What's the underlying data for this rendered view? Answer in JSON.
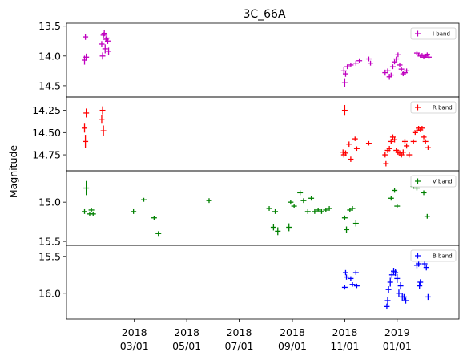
{
  "chart_data": {
    "type": "scatter",
    "title": "3C_66A",
    "ylabel": "Magnitude",
    "xlim": [
      "2017-12-12",
      "2019-03-14"
    ],
    "x_ticks": [
      {
        "date": "2018-03-01",
        "line1": "2018",
        "line2": "03/01"
      },
      {
        "date": "2018-05-01",
        "line1": "2018",
        "line2": "05/01"
      },
      {
        "date": "2018-07-01",
        "line1": "2018",
        "line2": "07/01"
      },
      {
        "date": "2018-09-01",
        "line1": "2018",
        "line2": "09/01"
      },
      {
        "date": "2018-11-01",
        "line1": "2018",
        "line2": "11/01"
      },
      {
        "date": "2019-01-01",
        "line1": "2019",
        "line2": "01/01"
      }
    ],
    "series": [
      {
        "name": "I band",
        "color": "#bf00bf",
        "y_inverted": true,
        "ylim": [
          14.69,
          13.45
        ],
        "yticks": [
          {
            "v": 13.5,
            "label": "13.5"
          },
          {
            "v": 14.0,
            "label": "14.0"
          },
          {
            "v": 14.5,
            "label": "14.5"
          }
        ],
        "points": [
          [
            "2018-01-02",
            14.07,
            0.15
          ],
          [
            "2018-01-03",
            13.68,
            0.1
          ],
          [
            "2018-01-04",
            14.02,
            0.12
          ],
          [
            "2018-01-22",
            13.8,
            0.1
          ],
          [
            "2018-01-23",
            14.0,
            0.12
          ],
          [
            "2018-01-24",
            13.65,
            0.09
          ],
          [
            "2018-01-25",
            13.62,
            0.1
          ],
          [
            "2018-01-26",
            13.88,
            0.15
          ],
          [
            "2018-01-27",
            13.72,
            0.1
          ],
          [
            "2018-01-28",
            13.7,
            0.12
          ],
          [
            "2018-01-29",
            13.75,
            0.1
          ],
          [
            "2018-01-30",
            13.92,
            0.12
          ],
          [
            "2018-10-31",
            14.25,
            0.12
          ],
          [
            "2018-11-01",
            14.45,
            0.15
          ],
          [
            "2018-11-02",
            14.3,
            0.1
          ],
          [
            "2018-11-04",
            14.18,
            0.08
          ],
          [
            "2018-11-08",
            14.15,
            0.08
          ],
          [
            "2018-11-14",
            14.12,
            0.08
          ],
          [
            "2018-11-18",
            14.08,
            0.08
          ],
          [
            "2018-11-29",
            14.05,
            0.08
          ],
          [
            "2018-12-01",
            14.12,
            0.08
          ],
          [
            "2018-12-18",
            14.28,
            0.1
          ],
          [
            "2018-12-21",
            14.25,
            0.08
          ],
          [
            "2018-12-23",
            14.35,
            0.1
          ],
          [
            "2018-12-25",
            14.32,
            0.08
          ],
          [
            "2018-12-27",
            14.18,
            0.08
          ],
          [
            "2018-12-29",
            14.1,
            0.08
          ],
          [
            "2018-12-31",
            14.05,
            0.08
          ],
          [
            "2019-01-02",
            13.98,
            0.08
          ],
          [
            "2019-01-04",
            14.15,
            0.08
          ],
          [
            "2019-01-06",
            14.22,
            0.08
          ],
          [
            "2019-01-08",
            14.3,
            0.08
          ],
          [
            "2019-01-10",
            14.28,
            0.08
          ],
          [
            "2019-01-12",
            14.25,
            0.08
          ],
          [
            "2019-01-24",
            13.95,
            0.06
          ],
          [
            "2019-01-26",
            13.98,
            0.06
          ],
          [
            "2019-01-28",
            14.0,
            0.06
          ],
          [
            "2019-01-30",
            13.98,
            0.06
          ],
          [
            "2019-02-01",
            14.02,
            0.06
          ],
          [
            "2019-02-03",
            14.0,
            0.06
          ],
          [
            "2019-02-05",
            13.97,
            0.06
          ],
          [
            "2019-02-07",
            14.02,
            0.06
          ]
        ]
      },
      {
        "name": "R band",
        "color": "#ff0000",
        "y_inverted": true,
        "ylim": [
          14.93,
          14.1
        ],
        "yticks": [
          {
            "v": 14.25,
            "label": "14.25"
          },
          {
            "v": 14.5,
            "label": "14.50"
          },
          {
            "v": 14.75,
            "label": "14.75"
          }
        ],
        "points": [
          [
            "2018-01-02",
            14.45,
            0.1
          ],
          [
            "2018-01-03",
            14.6,
            0.15
          ],
          [
            "2018-01-04",
            14.28,
            0.1
          ],
          [
            "2018-01-22",
            14.35,
            0.1
          ],
          [
            "2018-01-23",
            14.25,
            0.09
          ],
          [
            "2018-01-24",
            14.48,
            0.12
          ],
          [
            "2018-10-30",
            14.72,
            0.06
          ],
          [
            "2018-10-31",
            14.75,
            0.06
          ],
          [
            "2018-11-01",
            14.25,
            0.12
          ],
          [
            "2018-11-02",
            14.73,
            0.06
          ],
          [
            "2018-11-06",
            14.63,
            0.06
          ],
          [
            "2018-11-08",
            14.8,
            0.06
          ],
          [
            "2018-11-13",
            14.57,
            0.05
          ],
          [
            "2018-11-15",
            14.68,
            0.05
          ],
          [
            "2018-11-29",
            14.62,
            0.05
          ],
          [
            "2018-12-18",
            14.75,
            0.06
          ],
          [
            "2018-12-19",
            14.85,
            0.06
          ],
          [
            "2018-12-21",
            14.7,
            0.06
          ],
          [
            "2018-12-23",
            14.68,
            0.06
          ],
          [
            "2018-12-25",
            14.6,
            0.06
          ],
          [
            "2018-12-27",
            14.55,
            0.06
          ],
          [
            "2018-12-29",
            14.58,
            0.06
          ],
          [
            "2018-12-31",
            14.7,
            0.06
          ],
          [
            "2019-01-02",
            14.72,
            0.06
          ],
          [
            "2019-01-04",
            14.73,
            0.06
          ],
          [
            "2019-01-06",
            14.75,
            0.06
          ],
          [
            "2019-01-08",
            14.72,
            0.06
          ],
          [
            "2019-01-10",
            14.6,
            0.06
          ],
          [
            "2019-01-12",
            14.65,
            0.06
          ],
          [
            "2019-01-15",
            14.75,
            0.06
          ],
          [
            "2019-01-20",
            14.6,
            0.05
          ],
          [
            "2019-01-22",
            14.5,
            0.05
          ],
          [
            "2019-01-24",
            14.48,
            0.05
          ],
          [
            "2019-01-26",
            14.45,
            0.05
          ],
          [
            "2019-01-28",
            14.47,
            0.05
          ],
          [
            "2019-01-30",
            14.45,
            0.05
          ],
          [
            "2019-02-01",
            14.55,
            0.05
          ],
          [
            "2019-02-03",
            14.6,
            0.05
          ],
          [
            "2019-02-06",
            14.67,
            0.05
          ]
        ]
      },
      {
        "name": "V band",
        "color": "#008000",
        "y_inverted": true,
        "ylim": [
          15.55,
          14.6
        ],
        "yticks": [
          {
            "v": 15.0,
            "label": "15.0"
          },
          {
            "v": 15.5,
            "label": "15.5"
          }
        ],
        "points": [
          [
            "2018-01-02",
            15.12,
            0.06
          ],
          [
            "2018-01-04",
            14.82,
            0.18
          ],
          [
            "2018-01-08",
            15.15,
            0.06
          ],
          [
            "2018-01-10",
            15.1,
            0.06
          ],
          [
            "2018-01-12",
            15.15,
            0.06
          ],
          [
            "2018-02-28",
            15.12,
            0.06
          ],
          [
            "2018-03-12",
            14.97,
            0.05
          ],
          [
            "2018-03-24",
            15.2,
            0.05
          ],
          [
            "2018-03-29",
            15.4,
            0.06
          ],
          [
            "2018-05-27",
            14.98,
            0.06
          ],
          [
            "2018-08-05",
            15.08,
            0.06
          ],
          [
            "2018-08-10",
            15.32,
            0.08
          ],
          [
            "2018-08-12",
            15.12,
            0.06
          ],
          [
            "2018-08-15",
            15.37,
            0.1
          ],
          [
            "2018-08-28",
            15.32,
            0.1
          ],
          [
            "2018-08-30",
            15.0,
            0.06
          ],
          [
            "2018-09-03",
            15.05,
            0.06
          ],
          [
            "2018-09-10",
            14.88,
            0.06
          ],
          [
            "2018-09-14",
            14.98,
            0.06
          ],
          [
            "2018-09-19",
            15.12,
            0.06
          ],
          [
            "2018-09-23",
            14.95,
            0.06
          ],
          [
            "2018-09-27",
            15.12,
            0.06
          ],
          [
            "2018-10-01",
            15.1,
            0.06
          ],
          [
            "2018-10-05",
            15.12,
            0.06
          ],
          [
            "2018-10-10",
            15.1,
            0.06
          ],
          [
            "2018-10-14",
            15.08,
            0.06
          ],
          [
            "2018-11-01",
            15.2,
            0.06
          ],
          [
            "2018-11-03",
            15.35,
            0.08
          ],
          [
            "2018-11-07",
            15.1,
            0.06
          ],
          [
            "2018-11-10",
            15.08,
            0.06
          ],
          [
            "2018-11-14",
            15.27,
            0.08
          ],
          [
            "2018-12-25",
            14.95,
            0.06
          ],
          [
            "2018-12-29",
            14.85,
            0.06
          ],
          [
            "2019-01-01",
            15.05,
            0.06
          ],
          [
            "2019-01-20",
            14.8,
            0.06
          ],
          [
            "2019-01-24",
            14.82,
            0.06
          ],
          [
            "2019-02-01",
            14.88,
            0.06
          ],
          [
            "2019-02-05",
            15.18,
            0.06
          ]
        ]
      },
      {
        "name": "B band",
        "color": "#0000ff",
        "y_inverted": true,
        "ylim": [
          16.35,
          15.35
        ],
        "yticks": [
          {
            "v": 15.5,
            "label": "15.5"
          },
          {
            "v": 16.0,
            "label": "16.0"
          }
        ],
        "points": [
          [
            "2018-11-01",
            15.92,
            0.06
          ],
          [
            "2018-11-02",
            15.72,
            0.07
          ],
          [
            "2018-11-03",
            15.78,
            0.07
          ],
          [
            "2018-11-08",
            15.8,
            0.06
          ],
          [
            "2018-11-10",
            15.88,
            0.06
          ],
          [
            "2018-11-14",
            15.72,
            0.06
          ],
          [
            "2018-11-15",
            15.9,
            0.06
          ],
          [
            "2018-12-20",
            16.18,
            0.08
          ],
          [
            "2018-12-21",
            16.1,
            0.1
          ],
          [
            "2018-12-22",
            15.95,
            0.09
          ],
          [
            "2018-12-24",
            15.85,
            0.12
          ],
          [
            "2018-12-26",
            15.75,
            0.1
          ],
          [
            "2018-12-28",
            15.7,
            0.09
          ],
          [
            "2018-12-30",
            15.72,
            0.09
          ],
          [
            "2019-01-01",
            15.8,
            0.12
          ],
          [
            "2019-01-03",
            16.0,
            0.1
          ],
          [
            "2019-01-05",
            15.9,
            0.1
          ],
          [
            "2019-01-07",
            16.05,
            0.1
          ],
          [
            "2019-01-09",
            16.05,
            0.08
          ],
          [
            "2019-01-11",
            16.1,
            0.08
          ],
          [
            "2019-01-24",
            15.62,
            0.08
          ],
          [
            "2019-01-26",
            15.6,
            0.08
          ],
          [
            "2019-01-27",
            15.9,
            0.09
          ],
          [
            "2019-01-28",
            15.85,
            0.08
          ],
          [
            "2019-02-02",
            15.6,
            0.08
          ],
          [
            "2019-02-04",
            15.65,
            0.08
          ],
          [
            "2019-02-06",
            16.05,
            0.08
          ]
        ]
      }
    ]
  }
}
